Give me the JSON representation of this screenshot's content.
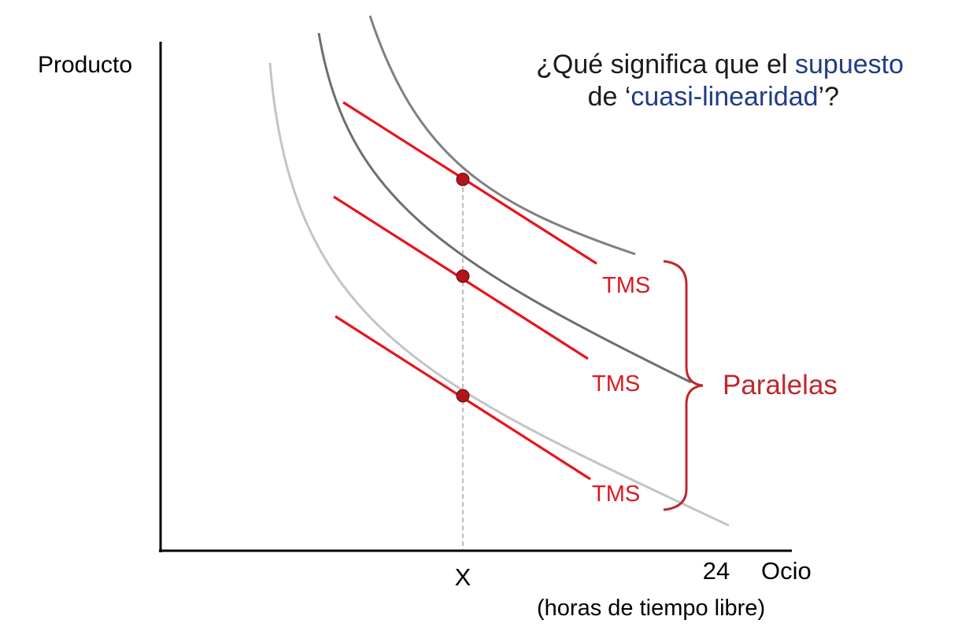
{
  "title": {
    "part1": "¿Qué significa que el ",
    "part2": "supuesto",
    "part3": "de ‘",
    "part4": "cuasi-linearidad",
    "part5": "’?"
  },
  "axes": {
    "y_label": "Producto",
    "x_label": "Ocio",
    "x_sublabel": "(horas de tiempo libre)",
    "x_tick_x": "X",
    "x_tick_24": "24"
  },
  "tangent_labels": [
    "TMS",
    "TMS",
    "TMS"
  ],
  "brace_label": "Paralelas",
  "colors": {
    "axis": "#000000",
    "title_text": "#1a1a1a",
    "title_accent": "#1f3c88",
    "tangent": "#e8141c",
    "label_red": "#d81b23",
    "brace": "#c0272d",
    "point": "#b3141c",
    "curve_top": "#808080",
    "curve_mid": "#6e6e6e",
    "curve_low": "#c4c4c4",
    "guide": "#9a9a9a"
  }
}
